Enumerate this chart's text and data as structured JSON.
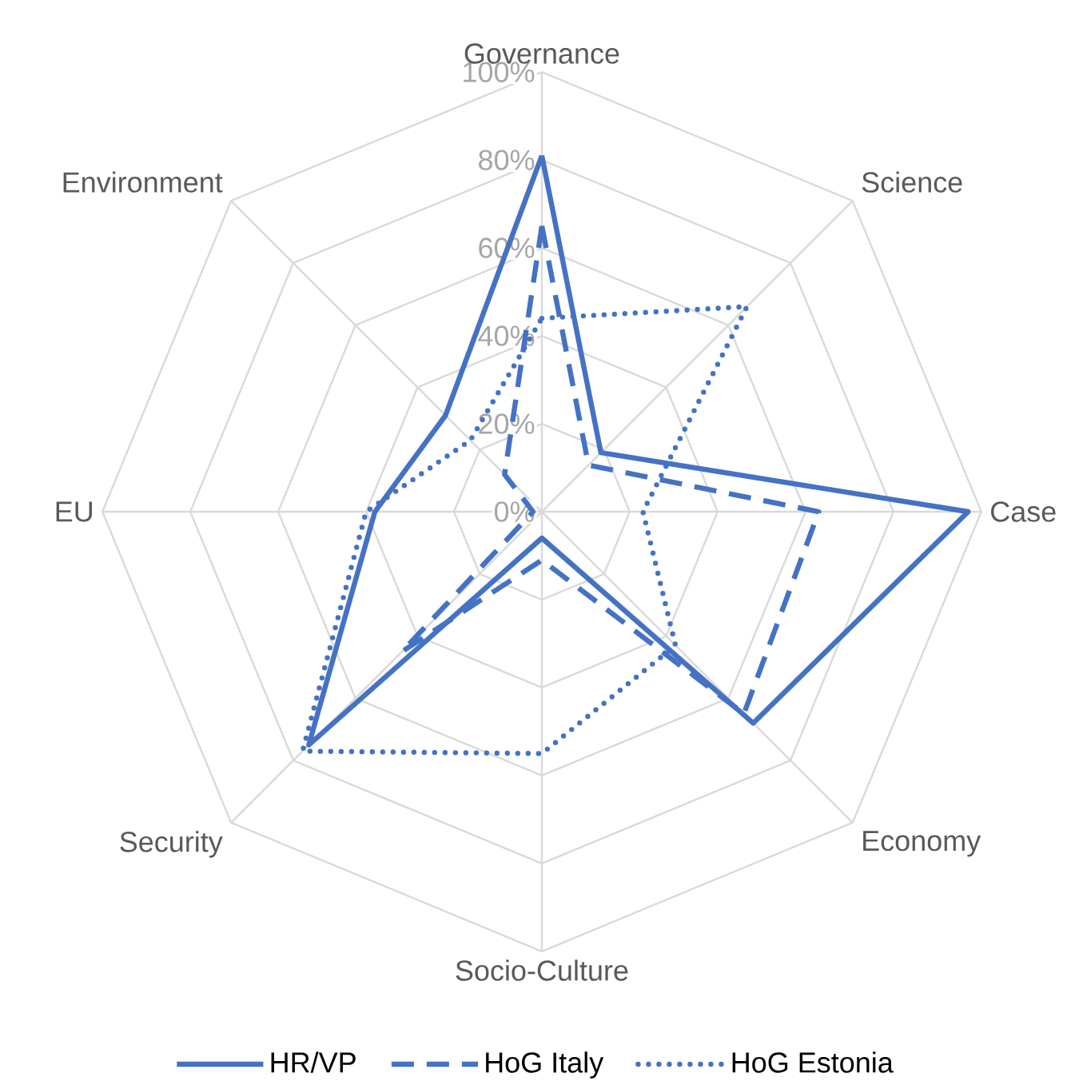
{
  "chart_data": {
    "type": "radar",
    "categories": [
      "Governance",
      "Science",
      "Case",
      "Economy",
      "Socio-Culture",
      "Security",
      "EU",
      "Environment"
    ],
    "series": [
      {
        "name": "HR/VP",
        "color": "#4472c4",
        "line_style": "solid",
        "values": [
          81,
          19,
          97,
          68,
          6,
          75,
          38,
          31
        ]
      },
      {
        "name": "HoG Italy",
        "color": "#4472c4",
        "line_style": "dashed",
        "values": [
          65,
          15,
          63,
          65,
          11,
          45,
          2,
          12
        ]
      },
      {
        "name": "HoG Estonia",
        "color": "#4472c4",
        "line_style": "dotted",
        "values": [
          44,
          66,
          23,
          43,
          55,
          77,
          40,
          23
        ]
      }
    ],
    "ylim": [
      0,
      100
    ],
    "yticks": [
      {
        "value": 0,
        "label": "0%"
      },
      {
        "value": 20,
        "label": "20%"
      },
      {
        "value": 40,
        "label": "40%"
      },
      {
        "value": 60,
        "label": "60%"
      },
      {
        "value": 80,
        "label": "80%"
      },
      {
        "value": 100,
        "label": "100%"
      }
    ],
    "grid": true,
    "legend": "bottom"
  }
}
